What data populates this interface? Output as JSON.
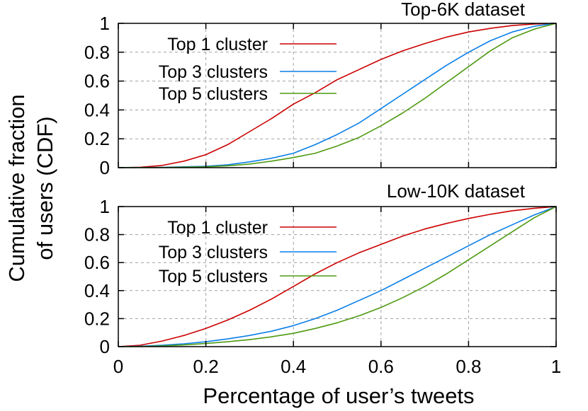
{
  "chart_data": [
    {
      "type": "line",
      "title": "Top-6K dataset",
      "xlim": [
        0,
        1
      ],
      "ylim": [
        0,
        1
      ],
      "x_ticks": [
        "0",
        "0.2",
        "0.4",
        "0.6",
        "0.8",
        "1"
      ],
      "y_ticks": [
        "0",
        "0.2",
        "0.4",
        "0.6",
        "0.8",
        "1"
      ],
      "grid": true,
      "legend_position": "top-left",
      "series": [
        {
          "name": "Top 1 cluster",
          "color": "#cc0000",
          "x": [
            0,
            0.05,
            0.1,
            0.15,
            0.2,
            0.25,
            0.3,
            0.35,
            0.4,
            0.45,
            0.5,
            0.55,
            0.6,
            0.65,
            0.7,
            0.75,
            0.8,
            0.85,
            0.9,
            0.95,
            1.0
          ],
          "y": [
            0,
            0.003,
            0.015,
            0.045,
            0.09,
            0.16,
            0.25,
            0.34,
            0.44,
            0.52,
            0.61,
            0.68,
            0.75,
            0.81,
            0.86,
            0.905,
            0.94,
            0.965,
            0.985,
            0.995,
            1.0
          ]
        },
        {
          "name": "Top 3 clusters",
          "color": "#0a7fe8",
          "x": [
            0,
            0.1,
            0.2,
            0.25,
            0.3,
            0.35,
            0.4,
            0.45,
            0.5,
            0.55,
            0.6,
            0.65,
            0.7,
            0.75,
            0.8,
            0.85,
            0.9,
            0.95,
            1.0
          ],
          "y": [
            0,
            0.002,
            0.01,
            0.02,
            0.04,
            0.065,
            0.1,
            0.16,
            0.23,
            0.31,
            0.41,
            0.51,
            0.61,
            0.71,
            0.8,
            0.88,
            0.94,
            0.98,
            1.0
          ]
        },
        {
          "name": "Top 5 clusters",
          "color": "#4f9a12",
          "x": [
            0,
            0.1,
            0.2,
            0.25,
            0.3,
            0.35,
            0.4,
            0.45,
            0.5,
            0.55,
            0.6,
            0.65,
            0.7,
            0.75,
            0.8,
            0.85,
            0.9,
            0.95,
            1.0
          ],
          "y": [
            0,
            0.001,
            0.006,
            0.013,
            0.025,
            0.045,
            0.07,
            0.1,
            0.15,
            0.21,
            0.29,
            0.38,
            0.48,
            0.59,
            0.7,
            0.81,
            0.9,
            0.96,
            1.0
          ]
        }
      ]
    },
    {
      "type": "line",
      "title": "Low-10K dataset",
      "xlim": [
        0,
        1
      ],
      "ylim": [
        0,
        1
      ],
      "x_ticks": [
        "0",
        "0.2",
        "0.4",
        "0.6",
        "0.8",
        "1"
      ],
      "y_ticks": [
        "0",
        "0.2",
        "0.4",
        "0.6",
        "0.8",
        "1"
      ],
      "grid": true,
      "legend_position": "top-left",
      "series": [
        {
          "name": "Top 1 cluster",
          "color": "#cc0000",
          "x": [
            0,
            0.05,
            0.1,
            0.15,
            0.2,
            0.25,
            0.3,
            0.35,
            0.4,
            0.45,
            0.5,
            0.55,
            0.6,
            0.65,
            0.7,
            0.75,
            0.8,
            0.85,
            0.9,
            0.95,
            1.0
          ],
          "y": [
            0,
            0.01,
            0.04,
            0.08,
            0.13,
            0.19,
            0.26,
            0.34,
            0.43,
            0.52,
            0.6,
            0.67,
            0.73,
            0.79,
            0.84,
            0.88,
            0.915,
            0.945,
            0.97,
            0.988,
            1.0
          ]
        },
        {
          "name": "Top 3 clusters",
          "color": "#0a7fe8",
          "x": [
            0,
            0.05,
            0.1,
            0.15,
            0.2,
            0.25,
            0.3,
            0.35,
            0.4,
            0.45,
            0.5,
            0.55,
            0.6,
            0.65,
            0.7,
            0.75,
            0.8,
            0.85,
            0.9,
            0.95,
            1.0
          ],
          "y": [
            0,
            0.003,
            0.01,
            0.02,
            0.035,
            0.055,
            0.08,
            0.11,
            0.15,
            0.2,
            0.26,
            0.33,
            0.4,
            0.48,
            0.56,
            0.64,
            0.72,
            0.8,
            0.87,
            0.94,
            1.0
          ]
        },
        {
          "name": "Top 5 clusters",
          "color": "#4f9a12",
          "x": [
            0,
            0.05,
            0.1,
            0.15,
            0.2,
            0.25,
            0.3,
            0.35,
            0.4,
            0.45,
            0.5,
            0.55,
            0.6,
            0.65,
            0.7,
            0.75,
            0.8,
            0.85,
            0.9,
            0.95,
            1.0
          ],
          "y": [
            0,
            0.001,
            0.005,
            0.012,
            0.022,
            0.035,
            0.05,
            0.07,
            0.095,
            0.13,
            0.17,
            0.22,
            0.28,
            0.35,
            0.43,
            0.52,
            0.62,
            0.72,
            0.82,
            0.92,
            1.0
          ]
        }
      ]
    }
  ],
  "shared_axes": {
    "xlabel": "Percentage of user’s tweets",
    "ylabel_line1": "Cumulative fraction",
    "ylabel_line2": "of users (CDF)"
  }
}
